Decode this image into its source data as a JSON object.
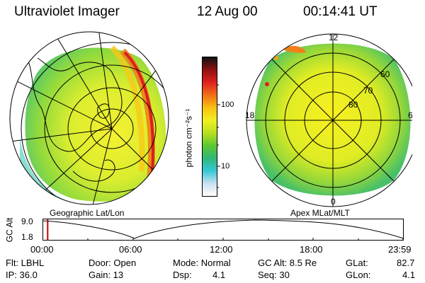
{
  "header": {
    "instrument": "Ultraviolet Imager",
    "date": "12 Aug 00",
    "time": "00:14:41  UT"
  },
  "panels": {
    "geographic_caption": "Geographic Lat/Lon",
    "apex_caption": "Apex  MLat/MLT"
  },
  "apex_labels": {
    "mlt_top": "12",
    "mlt_left": "18",
    "mlt_right": "6",
    "mlt_bottom": "0",
    "mlat_60": "60",
    "mlat_70": "70",
    "mlat_80": "80"
  },
  "colorbar": {
    "unit_label": "photon cm⁻²s⁻¹",
    "tick_100": "100",
    "tick_10": "10",
    "colors": [
      "#ffffff",
      "#c8e0f0",
      "#34c8d8",
      "#2fb878",
      "#5cc832",
      "#b8e020",
      "#f0f020",
      "#f8c010",
      "#f07018",
      "#e02020",
      "#901010",
      "#101010"
    ]
  },
  "altitude_plot": {
    "axis_label": "GC Alt",
    "y_max_label": "9.0",
    "y_min_label": "1.8",
    "time_labels": [
      "00:00",
      "06:00",
      "12:00",
      "18:00",
      "23:59"
    ],
    "current_marker_hours": 0.25
  },
  "info": {
    "filter": "Flt: LBHL",
    "ip": "IP: 36.0",
    "door": "Door: Open",
    "gain": "Gain: 13",
    "mode": "Mode: Normal",
    "dsp_label": "Dsp:",
    "dsp_value": "4.1",
    "gc_alt": "GC Alt: 8.5 Re",
    "seq": "Seq: 30",
    "glat_label": "GLat:",
    "glat_value": "82.7",
    "glon_label": "GLon:",
    "glon_value": "4.1"
  }
}
